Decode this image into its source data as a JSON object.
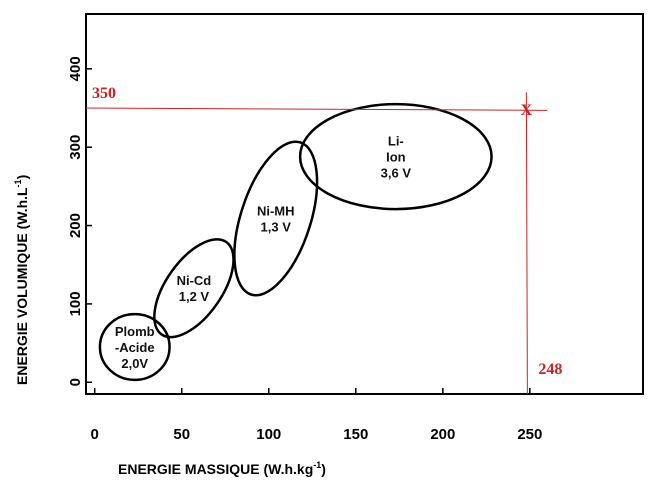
{
  "chart_data": {
    "type": "scatter",
    "xlabel": "ENERGIE MASSIQUE (W.h.kg",
    "xlabel_sup": "-1",
    "xlabel_suffix": ")",
    "ylabel": "ENERGIE VOLUMIQUE (W.h.L",
    "ylabel_sup": "-1",
    "ylabel_suffix": ")",
    "xlim": [
      -5,
      315
    ],
    "ylim": [
      -15,
      470
    ],
    "x_ticks": [
      "0",
      "50",
      "100",
      "150",
      "200",
      "250"
    ],
    "x_tick_values": [
      0,
      50,
      100,
      150,
      200,
      250
    ],
    "y_ticks": [
      "0",
      "100",
      "200",
      "300",
      "400"
    ],
    "y_tick_values": [
      0,
      100,
      200,
      300,
      400
    ],
    "regions": [
      {
        "lines": [
          "Plomb",
          "-Acide",
          "2,0V"
        ],
        "cx": 23,
        "cy": 45,
        "rx": 20,
        "ry": 42,
        "angle": 0
      },
      {
        "lines": [
          "Ni-Cd",
          "1,2 V"
        ],
        "cx": 57,
        "cy": 120,
        "rx": 16,
        "ry": 72,
        "angle": 35
      },
      {
        "lines": [
          "Ni-MH",
          "1,3 V"
        ],
        "cx": 104,
        "cy": 209,
        "rx": 20,
        "ry": 102,
        "angle": 18
      },
      {
        "lines": [
          "Li-",
          "Ion",
          "3,6 V"
        ],
        "cx": 173,
        "cy": 288,
        "rx": 55,
        "ry": 67,
        "angle": 0
      }
    ],
    "reference": {
      "x": 248,
      "y": 350,
      "x_label": "248",
      "y_label": "350",
      "marker": "X",
      "color": "#cc2222"
    },
    "grid": false,
    "legend": "none"
  }
}
